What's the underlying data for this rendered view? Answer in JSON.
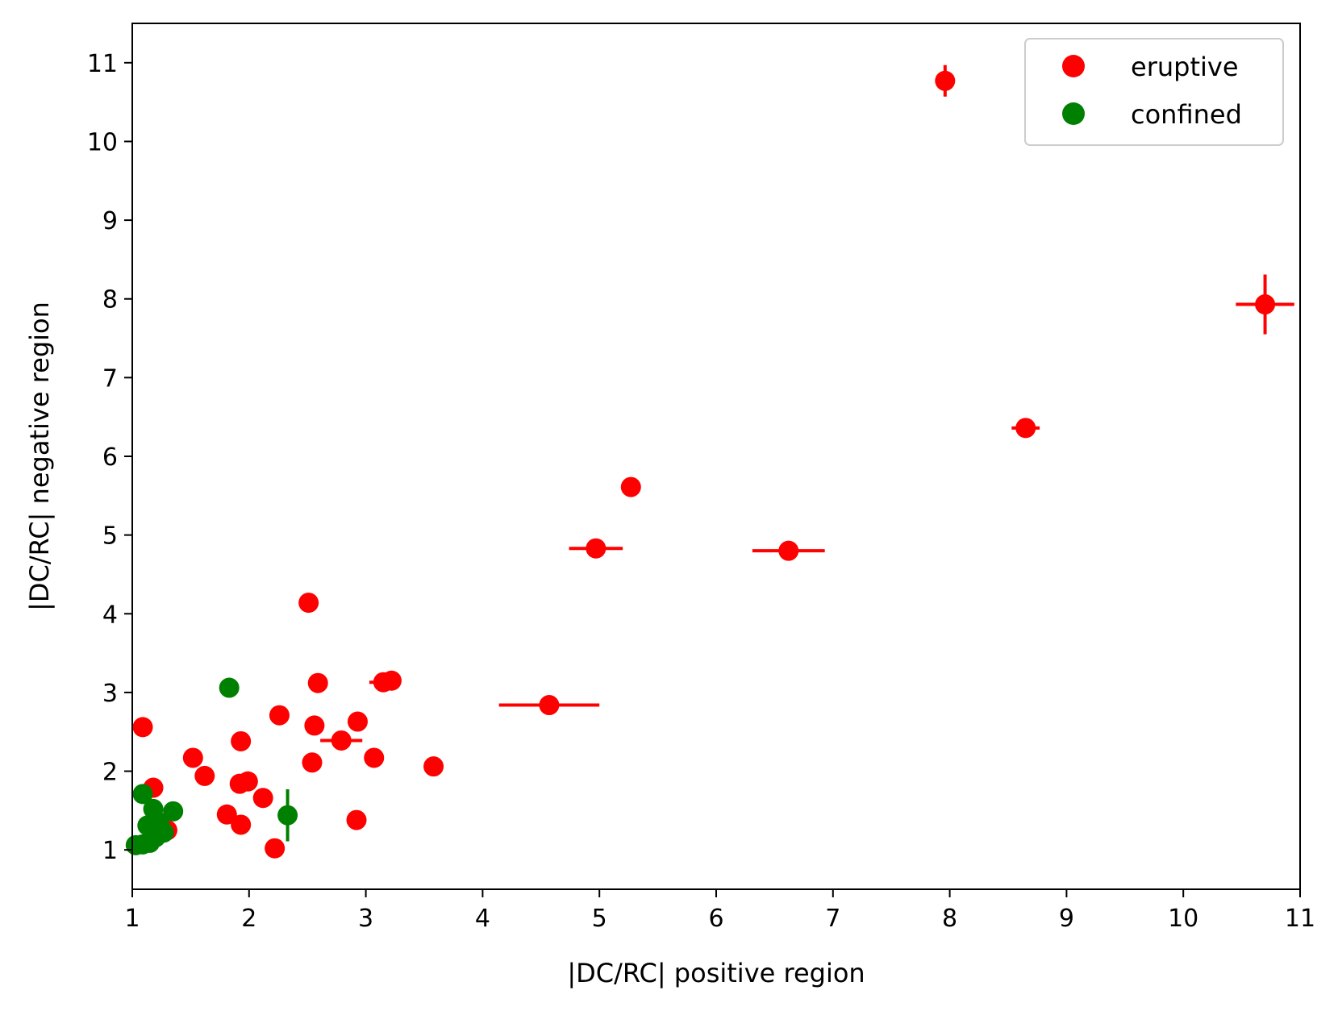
{
  "chart_data": {
    "type": "scatter",
    "title": "",
    "xlabel": "|DC/RC| positive region",
    "ylabel": "|DC/RC| negative region",
    "xlim": [
      1,
      11
    ],
    "ylim": [
      0.5,
      11.5
    ],
    "xticks": [
      "1",
      "2",
      "3",
      "4",
      "5",
      "6",
      "7",
      "8",
      "9",
      "10",
      "11"
    ],
    "yticks": [
      "1",
      "2",
      "3",
      "4",
      "5",
      "6",
      "7",
      "8",
      "9",
      "10",
      "11"
    ],
    "grid": false,
    "legend_position": "top-right",
    "series": [
      {
        "name": "eruptive",
        "color": "#ff0000",
        "points": [
          {
            "x": 7.96,
            "y": 10.77,
            "xerr": 0,
            "yerr": 0.2
          },
          {
            "x": 10.7,
            "y": 7.93,
            "xerr": 0.25,
            "yerr": 0.38
          },
          {
            "x": 8.65,
            "y": 6.36,
            "xerr": 0.12,
            "yerr": 0
          },
          {
            "x": 5.27,
            "y": 5.61,
            "xerr": 0,
            "yerr": 0
          },
          {
            "x": 4.97,
            "y": 4.83,
            "xerr": 0.23,
            "yerr": 0
          },
          {
            "x": 6.62,
            "y": 4.8,
            "xerr": 0.31,
            "yerr": 0
          },
          {
            "x": 4.57,
            "y": 2.84,
            "xerr": 0.43,
            "yerr": 0
          },
          {
            "x": 2.51,
            "y": 4.14,
            "xerr": 0,
            "yerr": 0
          },
          {
            "x": 2.59,
            "y": 3.12,
            "xerr": 0,
            "yerr": 0
          },
          {
            "x": 3.15,
            "y": 3.13,
            "xerr": 0.12,
            "yerr": 0
          },
          {
            "x": 3.22,
            "y": 3.15,
            "xerr": 0,
            "yerr": 0
          },
          {
            "x": 2.26,
            "y": 2.71,
            "xerr": 0,
            "yerr": 0
          },
          {
            "x": 2.56,
            "y": 2.58,
            "xerr": 0,
            "yerr": 0
          },
          {
            "x": 2.93,
            "y": 2.63,
            "xerr": 0,
            "yerr": 0
          },
          {
            "x": 2.79,
            "y": 2.39,
            "xerr": 0.18,
            "yerr": 0
          },
          {
            "x": 1.09,
            "y": 2.56,
            "xerr": 0,
            "yerr": 0
          },
          {
            "x": 1.93,
            "y": 2.38,
            "xerr": 0,
            "yerr": 0
          },
          {
            "x": 1.52,
            "y": 2.17,
            "xerr": 0,
            "yerr": 0
          },
          {
            "x": 2.54,
            "y": 2.11,
            "xerr": 0,
            "yerr": 0
          },
          {
            "x": 3.07,
            "y": 2.17,
            "xerr": 0,
            "yerr": 0
          },
          {
            "x": 3.58,
            "y": 2.06,
            "xerr": 0,
            "yerr": 0
          },
          {
            "x": 1.62,
            "y": 1.94,
            "xerr": 0,
            "yerr": 0
          },
          {
            "x": 1.92,
            "y": 1.84,
            "xerr": 0,
            "yerr": 0
          },
          {
            "x": 1.99,
            "y": 1.87,
            "xerr": 0,
            "yerr": 0
          },
          {
            "x": 1.18,
            "y": 1.79,
            "xerr": 0,
            "yerr": 0
          },
          {
            "x": 2.12,
            "y": 1.66,
            "xerr": 0,
            "yerr": 0
          },
          {
            "x": 1.81,
            "y": 1.45,
            "xerr": 0,
            "yerr": 0
          },
          {
            "x": 1.93,
            "y": 1.32,
            "xerr": 0,
            "yerr": 0
          },
          {
            "x": 2.92,
            "y": 1.38,
            "xerr": 0,
            "yerr": 0
          },
          {
            "x": 1.3,
            "y": 1.25,
            "xerr": 0,
            "yerr": 0
          },
          {
            "x": 2.22,
            "y": 1.02,
            "xerr": 0,
            "yerr": 0
          }
        ]
      },
      {
        "name": "confined",
        "color": "#008000",
        "points": [
          {
            "x": 1.83,
            "y": 3.06,
            "xerr": 0,
            "yerr": 0
          },
          {
            "x": 2.33,
            "y": 1.44,
            "xerr": 0,
            "yerr": 0.33
          },
          {
            "x": 1.09,
            "y": 1.71,
            "xerr": 0,
            "yerr": 0
          },
          {
            "x": 1.35,
            "y": 1.49,
            "xerr": 0,
            "yerr": 0
          },
          {
            "x": 1.18,
            "y": 1.52,
            "xerr": 0,
            "yerr": 0
          },
          {
            "x": 1.23,
            "y": 1.35,
            "xerr": 0,
            "yerr": 0
          },
          {
            "x": 1.13,
            "y": 1.31,
            "xerr": 0,
            "yerr": 0
          },
          {
            "x": 1.27,
            "y": 1.22,
            "xerr": 0,
            "yerr": 0
          },
          {
            "x": 1.2,
            "y": 1.16,
            "xerr": 0,
            "yerr": 0
          },
          {
            "x": 1.15,
            "y": 1.09,
            "xerr": 0,
            "yerr": 0
          },
          {
            "x": 1.03,
            "y": 1.06,
            "xerr": 0,
            "yerr": 0
          },
          {
            "x": 1.09,
            "y": 1.07,
            "xerr": 0,
            "yerr": 0
          }
        ]
      }
    ]
  }
}
